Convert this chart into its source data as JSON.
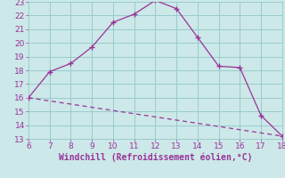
{
  "xlabel": "Windchill (Refroidissement éolien,°C)",
  "line1_x": [
    6,
    7,
    8,
    9,
    10,
    11,
    12,
    13,
    14,
    15,
    16,
    17,
    18
  ],
  "line1_y": [
    16.0,
    17.9,
    18.5,
    19.7,
    21.5,
    22.1,
    23.1,
    22.5,
    20.4,
    18.3,
    18.2,
    14.7,
    13.2
  ],
  "line2_x": [
    6,
    18
  ],
  "line2_y": [
    16.0,
    13.2
  ],
  "line_color": "#993399",
  "bg_color": "#cce8e8",
  "grid_color": "#99cccc",
  "xlim": [
    6,
    18
  ],
  "ylim": [
    13,
    23
  ],
  "xticks": [
    6,
    7,
    8,
    9,
    10,
    11,
    12,
    13,
    14,
    15,
    16,
    17,
    18
  ],
  "yticks": [
    13,
    14,
    15,
    16,
    17,
    18,
    19,
    20,
    21,
    22,
    23
  ],
  "tick_color": "#993399",
  "label_color": "#993399",
  "tick_fontsize": 6.5,
  "xlabel_fontsize": 7.0
}
